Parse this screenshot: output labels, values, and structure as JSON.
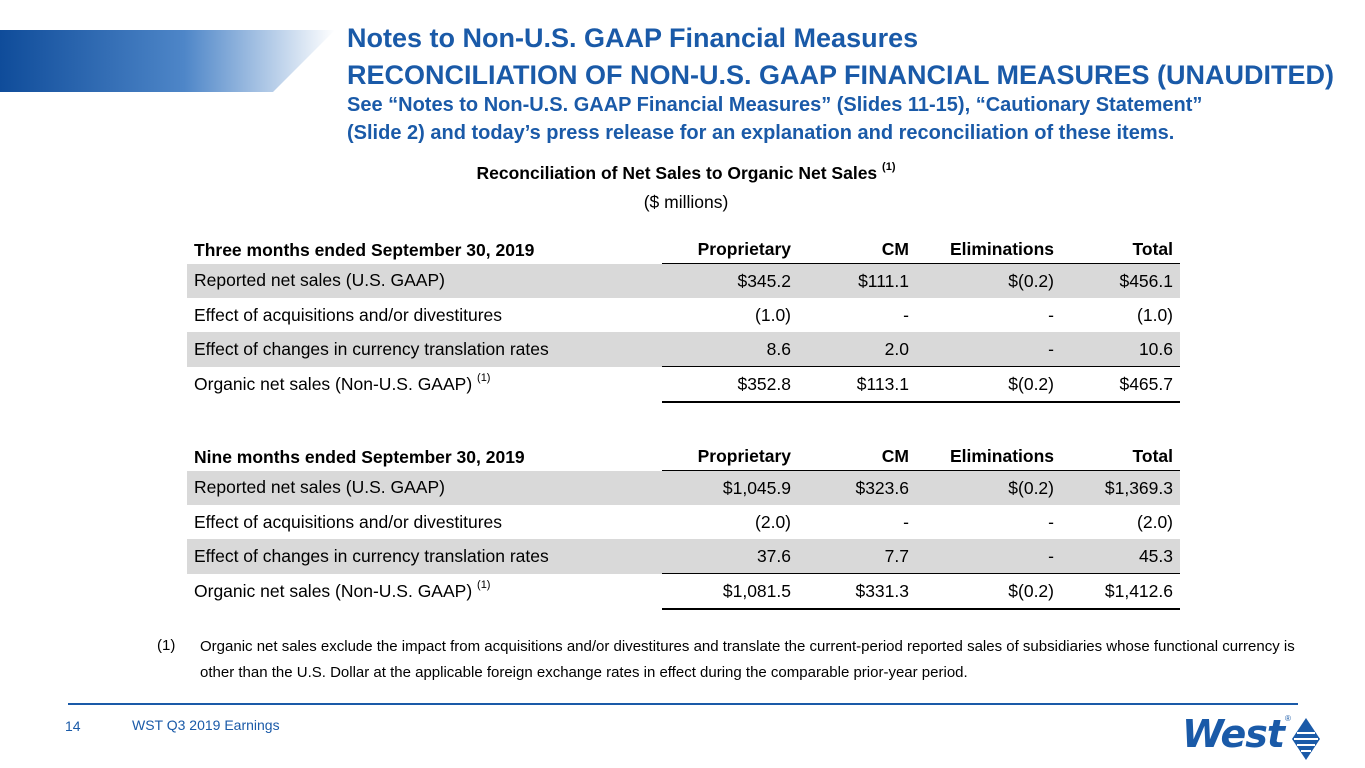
{
  "header": {
    "title": "Notes to Non-U.S. GAAP Financial Measures",
    "heading": "RECONCILIATION OF NON-U.S. GAAP FINANCIAL MEASURES (UNAUDITED)",
    "note_line1": "See “Notes to Non-U.S. GAAP Financial Measures” (Slides 11-15), “Cautionary Statement”",
    "note_line2": "(Slide 2) and today’s press release for an explanation and reconciliation of these items."
  },
  "section": {
    "title": "Reconciliation of Net Sales to Organic Net Sales",
    "title_ref": "(1)",
    "units": "($ millions)"
  },
  "tables": [
    {
      "period": "Three months ended September 30, 2019",
      "columns": [
        "Proprietary",
        "CM",
        "Eliminations",
        "Total"
      ],
      "rows": [
        {
          "label": "Reported net sales (U.S. GAAP)",
          "ref": "",
          "values": [
            "$345.2",
            "$111.1",
            "$(0.2)",
            "$456.1"
          ]
        },
        {
          "label": "Effect of acquisitions and/or divestitures",
          "ref": "",
          "values": [
            "(1.0)",
            "-",
            "-",
            "(1.0)"
          ]
        },
        {
          "label": "Effect of changes in currency translation rates",
          "ref": "",
          "values": [
            "8.6",
            "2.0",
            "-",
            "10.6"
          ]
        },
        {
          "label": "Organic net sales (Non-U.S. GAAP)",
          "ref": "(1)",
          "values": [
            "$352.8",
            "$113.1",
            "$(0.2)",
            "$465.7"
          ]
        }
      ]
    },
    {
      "period": "Nine months ended September 30, 2019",
      "columns": [
        "Proprietary",
        "CM",
        "Eliminations",
        "Total"
      ],
      "rows": [
        {
          "label": "Reported net sales (U.S. GAAP)",
          "ref": "",
          "values": [
            "$1,045.9",
            "$323.6",
            "$(0.2)",
            "$1,369.3"
          ]
        },
        {
          "label": "Effect of acquisitions and/or divestitures",
          "ref": "",
          "values": [
            "(2.0)",
            "-",
            "-",
            "(2.0)"
          ]
        },
        {
          "label": "Effect of changes in currency translation rates",
          "ref": "",
          "values": [
            "37.6",
            "7.7",
            "-",
            "45.3"
          ]
        },
        {
          "label": "Organic net sales (Non-U.S. GAAP)",
          "ref": "(1)",
          "values": [
            "$1,081.5",
            "$331.3",
            "$(0.2)",
            "$1,412.6"
          ]
        }
      ]
    }
  ],
  "footnote": {
    "marker": "(1)",
    "text": "Organic net sales exclude the impact from acquisitions and/or divestitures and translate the current-period reported sales of subsidiaries whose functional currency is other than the U.S. Dollar at the applicable foreign exchange rates in effect during the comparable prior-year period."
  },
  "footer": {
    "page_number": "14",
    "label": "WST Q3 2019 Earnings",
    "logo_text": "West",
    "logo_mark": "®"
  },
  "colors": {
    "brand_blue": "#1a5aa8",
    "row_shade": "#d9d9d9"
  }
}
